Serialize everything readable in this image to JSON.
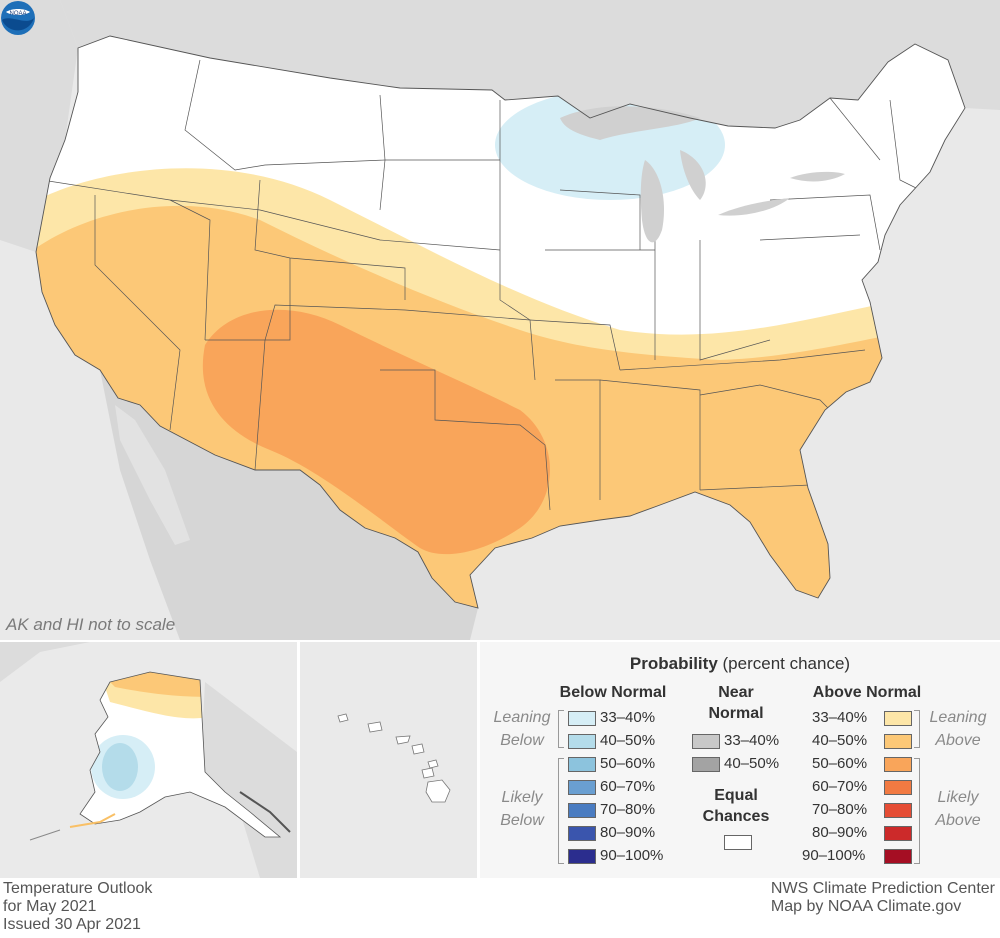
{
  "map": {
    "scale_note": "AK and HI not to scale",
    "logo_label": "NOAA"
  },
  "legend": {
    "title_bold": "Probability",
    "title_rest": " (percent chance)",
    "below_header": "Below Normal",
    "near_header_line1": "Near",
    "near_header_line2": "Normal",
    "above_header": "Above Normal",
    "equal_line1": "Equal",
    "equal_line2": "Chances",
    "leaning_below_1": "Leaning",
    "leaning_below_2": "Below",
    "likely_below_1": "Likely",
    "likely_below_2": "Below",
    "leaning_above_1": "Leaning",
    "leaning_above_2": "Above",
    "likely_above_1": "Likely",
    "likely_above_2": "Above",
    "below": [
      {
        "label": "33–40%",
        "color": "#d6eef6"
      },
      {
        "label": "40–50%",
        "color": "#b4dcea"
      },
      {
        "label": "50–60%",
        "color": "#8cc3dd"
      },
      {
        "label": "60–70%",
        "color": "#6a9fd1"
      },
      {
        "label": "70–80%",
        "color": "#4a7cc1"
      },
      {
        "label": "80–90%",
        "color": "#3a55ad"
      },
      {
        "label": "90–100%",
        "color": "#2b2d8e"
      }
    ],
    "near": [
      {
        "label": "33–40%",
        "color": "#c8c8c8"
      },
      {
        "label": "40–50%",
        "color": "#a3a3a3"
      }
    ],
    "above": [
      {
        "label": "33–40%",
        "color": "#fde6a8"
      },
      {
        "label": "40–50%",
        "color": "#fcc877"
      },
      {
        "label": "50–60%",
        "color": "#f9a55a"
      },
      {
        "label": "60–70%",
        "color": "#f27a42"
      },
      {
        "label": "70–80%",
        "color": "#e54d35"
      },
      {
        "label": "80–90%",
        "color": "#cc2a2a"
      },
      {
        "label": "90–100%",
        "color": "#a50e23"
      }
    ]
  },
  "footer": {
    "title_1": "Temperature Outlook",
    "title_2": "for May 2021",
    "issued": "Issued 30 Apr 2021",
    "credit_1": "NWS Climate Prediction Center",
    "credit_2": "Map by NOAA Climate.gov"
  }
}
